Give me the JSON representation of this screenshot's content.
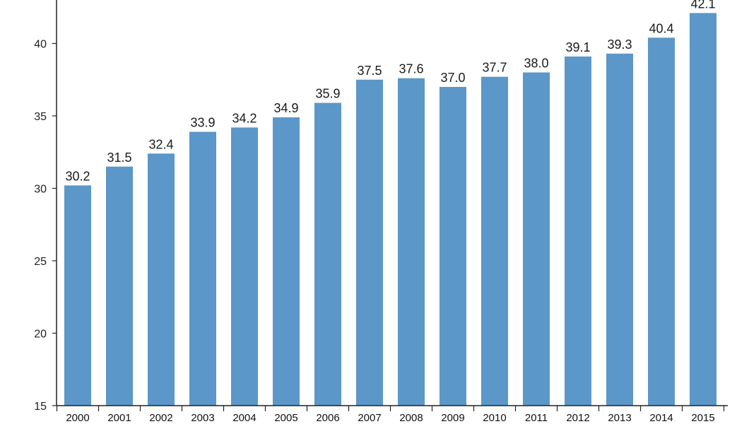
{
  "chart_data": {
    "type": "bar",
    "title": "",
    "xlabel": "",
    "ylabel": "",
    "categories": [
      "2000",
      "2001",
      "2002",
      "2003",
      "2004",
      "2005",
      "2006",
      "2007",
      "2008",
      "2009",
      "2010",
      "2011",
      "2012",
      "2013",
      "2014",
      "2015"
    ],
    "values": [
      30.2,
      31.5,
      32.4,
      33.9,
      34.2,
      34.9,
      35.9,
      37.5,
      37.6,
      37.0,
      37.7,
      38.0,
      39.1,
      39.3,
      40.4,
      42.1
    ],
    "value_labels": [
      "30.2",
      "31.5",
      "32.4",
      "33.9",
      "34.2",
      "34.9",
      "35.9",
      "37.5",
      "37.6",
      "37.0",
      "37.7",
      "38.0",
      "39.1",
      "39.3",
      "40.4",
      "42.1"
    ],
    "ylim": [
      15,
      43
    ],
    "yticks": [
      15,
      20,
      25,
      30,
      35,
      40
    ],
    "ytick_labels": [
      "15",
      "20",
      "25",
      "30",
      "35",
      "40"
    ],
    "grid": false,
    "legend": "none",
    "colors": {
      "bar": "#5b97c8",
      "axis": "#222222",
      "background": "#ffffff"
    }
  }
}
